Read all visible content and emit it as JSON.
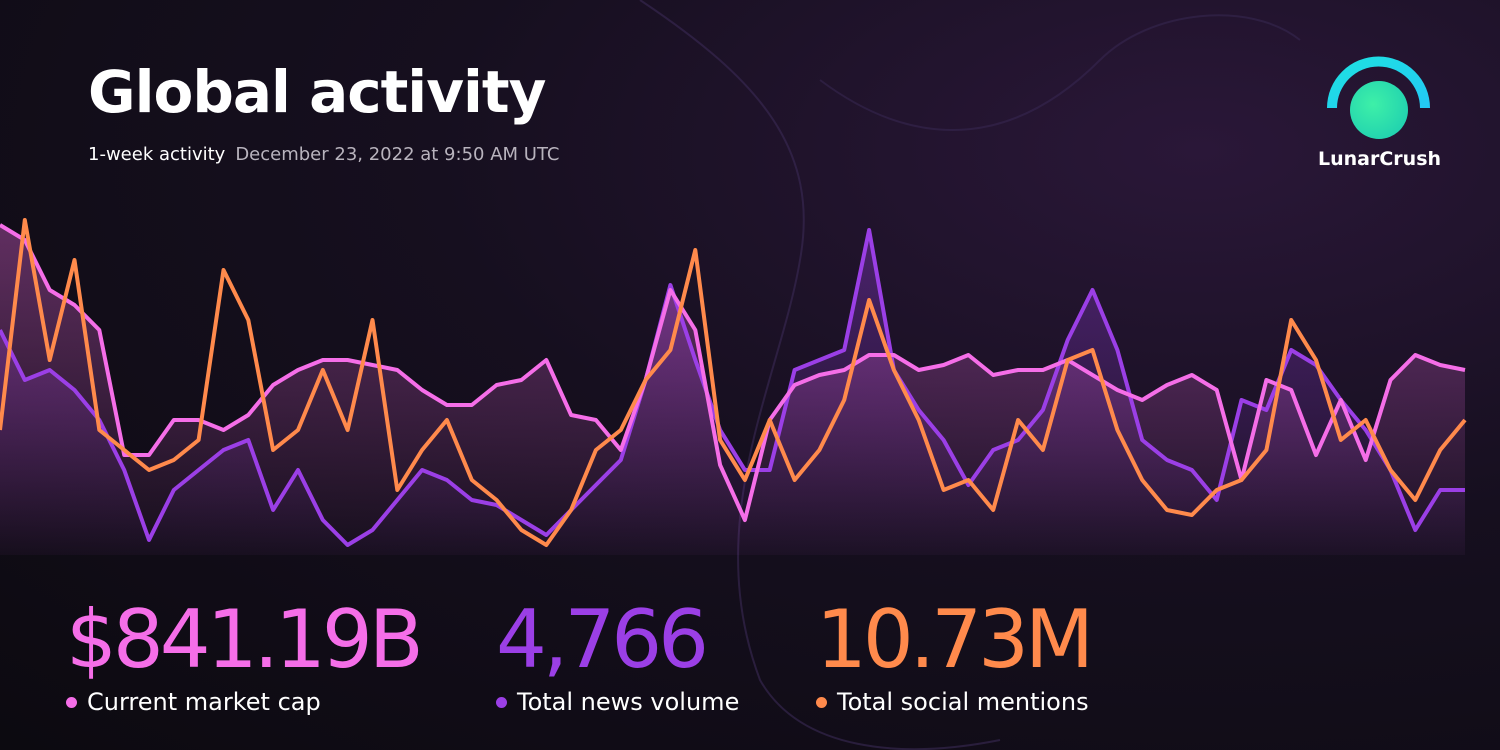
{
  "chart_data": {
    "type": "line",
    "title": "Global activity",
    "subtitle": "1-week activity",
    "timestamp": "December 23, 2022 at 9:50 AM UTC",
    "brand": "LunarCrush",
    "series": [
      {
        "name": "Current market cap",
        "headline": "$841.19B",
        "color": "#f56ee8",
        "values": [
          330,
          315,
          265,
          250,
          225,
          100,
          100,
          135,
          135,
          125,
          140,
          170,
          185,
          195,
          195,
          190,
          185,
          165,
          150,
          150,
          170,
          175,
          195,
          140,
          135,
          105,
          175,
          265,
          225,
          90,
          35,
          135,
          170,
          180,
          185,
          200,
          200,
          185,
          190,
          200,
          180,
          185,
          185,
          195,
          180,
          165,
          155,
          170,
          180,
          165,
          75,
          175,
          165,
          100,
          155,
          95,
          175,
          200,
          190,
          185
        ]
      },
      {
        "name": "Total news volume",
        "headline": "4,766",
        "color": "#9b3fe6",
        "values": [
          225,
          175,
          185,
          165,
          135,
          85,
          15,
          65,
          85,
          105,
          115,
          45,
          85,
          35,
          10,
          25,
          55,
          85,
          75,
          55,
          50,
          35,
          20,
          45,
          70,
          95,
          175,
          270,
          195,
          125,
          85,
          85,
          185,
          195,
          205,
          325,
          185,
          145,
          115,
          70,
          105,
          115,
          145,
          215,
          265,
          205,
          115,
          95,
          85,
          55,
          155,
          145,
          205,
          190,
          155,
          125,
          85,
          25,
          65,
          65
        ]
      },
      {
        "name": "Total social mentions",
        "headline": "10.73M",
        "color": "#ff8a4c",
        "values": [
          125,
          335,
          195,
          295,
          125,
          105,
          85,
          95,
          115,
          285,
          235,
          105,
          125,
          185,
          125,
          235,
          65,
          105,
          135,
          75,
          55,
          25,
          10,
          45,
          105,
          125,
          175,
          205,
          305,
          115,
          75,
          135,
          75,
          105,
          155,
          255,
          185,
          135,
          65,
          75,
          45,
          135,
          105,
          195,
          205,
          125,
          75,
          45,
          40,
          65,
          75,
          105,
          235,
          195,
          115,
          135,
          85,
          55,
          105,
          135
        ]
      }
    ]
  }
}
